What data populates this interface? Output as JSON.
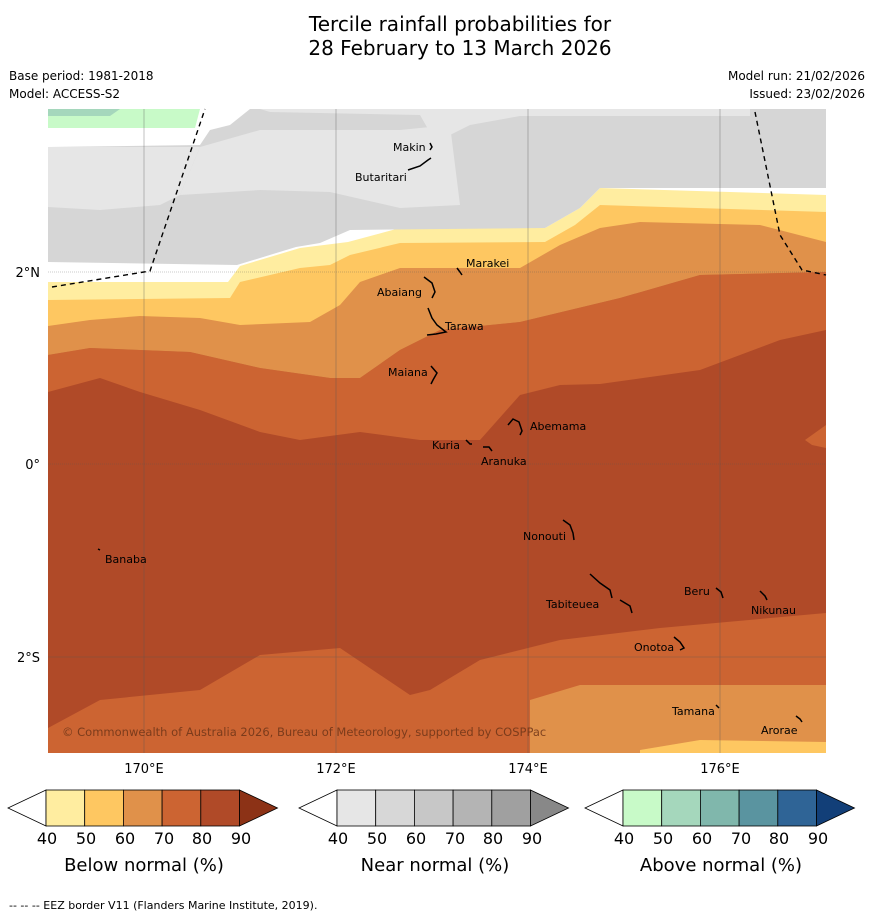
{
  "header": {
    "title_line1": "Tercile rainfall probabilities for",
    "title_line2": "28 February to 13 March 2026",
    "base_period": "Base period: 1981-2018",
    "model": "Model: ACCESS-S2",
    "model_run": "Model run: 21/02/2026",
    "issued": "Issued: 23/02/2026"
  },
  "map": {
    "lat_labels": [
      "2°N",
      "0°",
      "2°S"
    ],
    "lon_labels": [
      "170°E",
      "172°E",
      "174°E",
      "176°E"
    ],
    "islands": [
      "Makin",
      "Butaritari",
      "Marakei",
      "Abaiang",
      "Tarawa",
      "Maiana",
      "Abemama",
      "Kuria",
      "Aranuka",
      "Nonouti",
      "Banaba",
      "Beru",
      "Tabiteuea",
      "Nikunau",
      "Onotoa",
      "Tamana",
      "Arorae"
    ],
    "copyright": "© Commonwealth of Australia 2026, Bureau of Meteorology, supported by COSPPac"
  },
  "legends": [
    {
      "label": "Below normal (%)",
      "ticks": [
        "40",
        "50",
        "60",
        "70",
        "80",
        "90"
      ],
      "colors": [
        "#ffffff",
        "#ffeda0",
        "#fec761",
        "#e0914a",
        "#cc6432",
        "#b04a28",
        "#8c3216"
      ]
    },
    {
      "label": "Near normal (%)",
      "ticks": [
        "40",
        "50",
        "60",
        "70",
        "80",
        "90"
      ],
      "colors": [
        "#ffffff",
        "#e6e6e6",
        "#d7d7d7",
        "#c7c7c7",
        "#b4b4b4",
        "#a0a0a0",
        "#888888"
      ]
    },
    {
      "label": "Above normal (%)",
      "ticks": [
        "40",
        "50",
        "60",
        "70",
        "80",
        "90"
      ],
      "colors": [
        "#ffffff",
        "#c8fac8",
        "#a5d7bc",
        "#80b7ac",
        "#5a94a0",
        "#2f6496",
        "#123f78"
      ]
    }
  ],
  "footer": "--  --  -- EEZ border V11 (Flanders Marine Institute, 2019)."
}
